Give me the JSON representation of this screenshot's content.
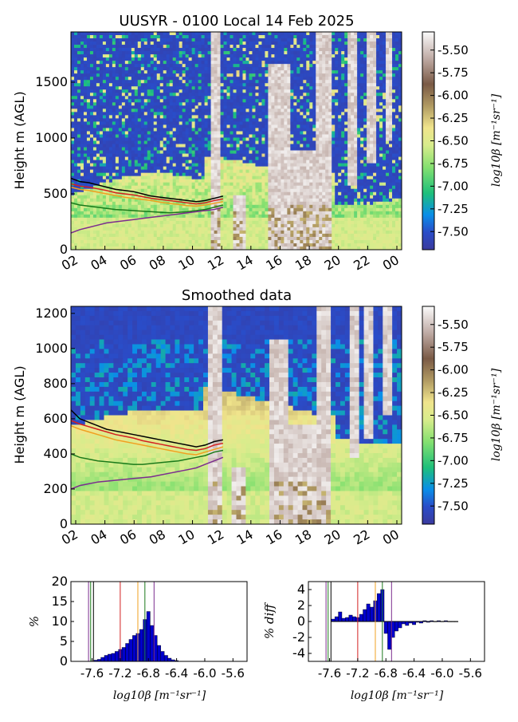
{
  "chart_data": [
    {
      "type": "heatmap",
      "title": "UUSYR - 0100 Local 14 Feb 2025",
      "xlabel": "",
      "ylabel": "Height m (AGL)",
      "x_ticks": [
        "02",
        "04",
        "06",
        "08",
        "10",
        "12",
        "14",
        "16",
        "18",
        "20",
        "22",
        "00"
      ],
      "y_ticks": [
        0,
        500,
        1000,
        1500
      ],
      "ylim": [
        0,
        1950
      ],
      "colorbar": {
        "label": "log10β [m⁻¹sr⁻¹]",
        "ticks": [
          "-5.50",
          "-5.75",
          "-6.00",
          "-6.25",
          "-6.50",
          "-6.75",
          "-7.00",
          "-7.25",
          "-7.50"
        ],
        "range": [
          -7.7,
          -5.3
        ]
      },
      "lines": [
        {
          "color": "#000000",
          "values": [
            640,
            610,
            600,
            580,
            560,
            540,
            530,
            520,
            500,
            480,
            470,
            460,
            450,
            440,
            430,
            440,
            460,
            480
          ]
        },
        {
          "color": "#d42020",
          "values": [
            590,
            570,
            560,
            545,
            530,
            510,
            500,
            490,
            475,
            460,
            450,
            440,
            430,
            420,
            410,
            420,
            440,
            455
          ]
        },
        {
          "color": "#f0a020",
          "values": [
            560,
            540,
            530,
            515,
            500,
            485,
            470,
            460,
            450,
            440,
            425,
            415,
            405,
            395,
            390,
            400,
            415,
            430
          ]
        },
        {
          "color": "#1a7a1a",
          "values": [
            420,
            400,
            390,
            380,
            370,
            360,
            355,
            350,
            345,
            340,
            335,
            330,
            335,
            340,
            350,
            360,
            380,
            400
          ]
        },
        {
          "color": "#7b2d8e",
          "values": [
            150,
            180,
            200,
            220,
            240,
            250,
            260,
            270,
            280,
            290,
            300,
            310,
            320,
            330,
            340,
            350,
            360,
            380
          ]
        }
      ]
    },
    {
      "type": "heatmap",
      "title": "Smoothed data",
      "xlabel": "",
      "ylabel": "Height m (AGL)",
      "x_ticks": [
        "02",
        "04",
        "06",
        "08",
        "10",
        "12",
        "14",
        "16",
        "18",
        "20",
        "22",
        "00"
      ],
      "y_ticks": [
        0,
        200,
        400,
        600,
        800,
        1000,
        1200
      ],
      "ylim": [
        0,
        1240
      ],
      "colorbar": {
        "label": "log10β [m⁻¹sr⁻¹]",
        "ticks": [
          "-5.50",
          "-5.75",
          "-6.00",
          "-6.25",
          "-6.50",
          "-6.75",
          "-7.00",
          "-7.25",
          "-7.50"
        ],
        "range": [
          -7.7,
          -5.3
        ]
      },
      "lines": [
        {
          "color": "#000000",
          "values": [
            650,
            600,
            580,
            560,
            540,
            530,
            520,
            510,
            500,
            490,
            480,
            470,
            460,
            450,
            440,
            450,
            470,
            480
          ]
        },
        {
          "color": "#d42020",
          "values": [
            590,
            570,
            555,
            540,
            525,
            510,
            500,
            490,
            475,
            465,
            455,
            445,
            435,
            425,
            420,
            430,
            450,
            460
          ]
        },
        {
          "color": "#f0a020",
          "values": [
            560,
            540,
            525,
            510,
            495,
            480,
            470,
            460,
            450,
            440,
            430,
            420,
            410,
            400,
            395,
            410,
            425,
            440
          ]
        },
        {
          "color": "#1a7a1a",
          "values": [
            400,
            380,
            370,
            360,
            355,
            350,
            345,
            340,
            340,
            345,
            350,
            355,
            360,
            370,
            380,
            390,
            410,
            420
          ]
        },
        {
          "color": "#7b2d8e",
          "values": [
            200,
            220,
            230,
            240,
            245,
            250,
            255,
            260,
            265,
            270,
            280,
            290,
            300,
            310,
            320,
            340,
            360,
            380
          ]
        }
      ]
    },
    {
      "type": "bar",
      "title": "",
      "xlabel": "log10β [m⁻¹sr⁻¹]",
      "ylabel": "%",
      "x_ticks": [
        "-7.6",
        "-7.2",
        "-6.8",
        "-6.4",
        "-6.0",
        "-5.6"
      ],
      "xlim": [
        -7.9,
        -5.4
      ],
      "ylim": [
        0,
        20
      ],
      "y_ticks": [
        0,
        5,
        10,
        15,
        20
      ],
      "bin_width": 0.05,
      "x": [
        -7.55,
        -7.5,
        -7.45,
        -7.4,
        -7.35,
        -7.3,
        -7.25,
        -7.2,
        -7.15,
        -7.1,
        -7.05,
        -7.0,
        -6.95,
        -6.9,
        -6.85,
        -6.8,
        -6.75,
        -6.7,
        -6.65,
        -6.6,
        -6.55,
        -6.5,
        -6.45,
        -6.4
      ],
      "values": [
        0.3,
        0.5,
        1.0,
        1.5,
        1.8,
        2.0,
        2.5,
        3.0,
        3.5,
        4.5,
        5.5,
        6.5,
        7.0,
        8.0,
        10.5,
        12.5,
        9.0,
        6.5,
        4.0,
        2.5,
        1.5,
        0.8,
        0.4,
        0.2
      ],
      "vlines": [
        {
          "x": -7.65,
          "color": "#7b2d8e"
        },
        {
          "x": -7.62,
          "color": "#1a7a1a"
        },
        {
          "x": -7.58,
          "color": "#000000"
        },
        {
          "x": -7.2,
          "color": "#d42020"
        },
        {
          "x": -6.95,
          "color": "#f0a020"
        },
        {
          "x": -6.85,
          "color": "#1a7a1a"
        },
        {
          "x": -6.72,
          "color": "#7b2d8e"
        }
      ]
    },
    {
      "type": "bar",
      "title": "",
      "xlabel": "log10β [m⁻¹sr⁻¹]",
      "ylabel": "% diff",
      "x_ticks": [
        "-7.6",
        "-7.2",
        "-6.8",
        "-6.4",
        "-6.0",
        "-5.6"
      ],
      "xlim": [
        -7.9,
        -5.4
      ],
      "ylim": [
        -5,
        5
      ],
      "y_ticks": [
        -4,
        -2,
        0,
        2,
        4
      ],
      "bin_width": 0.05,
      "x": [
        -7.55,
        -7.5,
        -7.45,
        -7.4,
        -7.35,
        -7.3,
        -7.25,
        -7.2,
        -7.15,
        -7.1,
        -7.05,
        -7.0,
        -6.95,
        -6.9,
        -6.85,
        -6.8,
        -6.75,
        -6.7,
        -6.65,
        -6.6,
        -6.55,
        -6.5,
        -6.45,
        -6.4,
        -6.35,
        -6.3,
        -6.25,
        -6.2,
        -6.15,
        -6.1,
        -6.05,
        -6.0,
        -5.95,
        -5.9,
        -5.85,
        -5.8
      ],
      "values": [
        0.3,
        0.6,
        1.2,
        0.4,
        0.5,
        0.8,
        0.6,
        0.5,
        0.9,
        1.5,
        2.2,
        1.8,
        2.6,
        3.5,
        4.0,
        -1.5,
        -3.5,
        -2.0,
        -1.2,
        -0.8,
        -0.3,
        -0.5,
        -0.2,
        -0.4,
        -0.1,
        -0.2,
        0.1,
        -0.1,
        0.1,
        0.0,
        0.1,
        0.0,
        0.1,
        0.0,
        0.0,
        0.0
      ],
      "vlines": [
        {
          "x": -7.65,
          "color": "#7b2d8e"
        },
        {
          "x": -7.62,
          "color": "#1a7a1a"
        },
        {
          "x": -7.58,
          "color": "#000000"
        },
        {
          "x": -7.2,
          "color": "#d42020"
        },
        {
          "x": -6.95,
          "color": "#f0a020"
        },
        {
          "x": -6.85,
          "color": "#1a7a1a"
        },
        {
          "x": -6.72,
          "color": "#7b2d8e"
        }
      ]
    }
  ]
}
